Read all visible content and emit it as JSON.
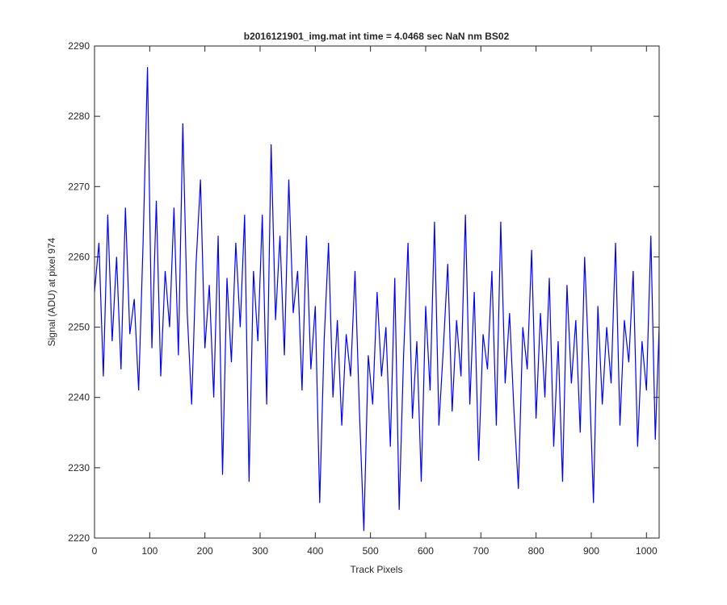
{
  "chart_data": {
    "type": "line",
    "title": "b2016121901_img.mat int time = 4.0468 sec  NaN nm BS02",
    "xlabel": "Track Pixels",
    "ylabel": "Signal (ADU) at pixel 974",
    "x": [
      0,
      8,
      16,
      24,
      32,
      40,
      48,
      56,
      64,
      72,
      80,
      88,
      96,
      104,
      112,
      120,
      128,
      136,
      144,
      152,
      160,
      168,
      176,
      184,
      192,
      200,
      208,
      216,
      224,
      232,
      240,
      248,
      256,
      264,
      272,
      280,
      288,
      296,
      304,
      312,
      320,
      328,
      336,
      344,
      352,
      360,
      368,
      376,
      384,
      392,
      400,
      408,
      416,
      424,
      432,
      440,
      448,
      456,
      464,
      472,
      480,
      488,
      496,
      504,
      512,
      520,
      528,
      536,
      544,
      552,
      560,
      568,
      576,
      584,
      592,
      600,
      608,
      616,
      624,
      632,
      640,
      648,
      656,
      664,
      672,
      680,
      688,
      696,
      704,
      712,
      720,
      728,
      736,
      744,
      752,
      760,
      768,
      776,
      784,
      792,
      800,
      808,
      816,
      824,
      832,
      840,
      848,
      856,
      864,
      872,
      880,
      888,
      896,
      904,
      912,
      920,
      928,
      936,
      944,
      952,
      960,
      968,
      976,
      984,
      992,
      1000,
      1008,
      1016,
      1023
    ],
    "values": [
      2255,
      2262,
      2243,
      2266,
      2248,
      2260,
      2244,
      2267,
      2249,
      2254,
      2241,
      2262,
      2287,
      2247,
      2268,
      2243,
      2258,
      2250,
      2267,
      2246,
      2279,
      2252,
      2239,
      2259,
      2271,
      2247,
      2256,
      2240,
      2263,
      2229,
      2257,
      2245,
      2262,
      2250,
      2266,
      2228,
      2258,
      2248,
      2266,
      2239,
      2276,
      2251,
      2263,
      2246,
      2271,
      2252,
      2258,
      2241,
      2263,
      2244,
      2253,
      2225,
      2248,
      2262,
      2240,
      2251,
      2236,
      2249,
      2243,
      2258,
      2238,
      2221,
      2246,
      2239,
      2255,
      2243,
      2250,
      2233,
      2257,
      2224,
      2246,
      2262,
      2237,
      2248,
      2228,
      2253,
      2241,
      2265,
      2236,
      2247,
      2259,
      2238,
      2251,
      2243,
      2266,
      2239,
      2255,
      2231,
      2249,
      2244,
      2258,
      2236,
      2265,
      2242,
      2252,
      2238,
      2227,
      2250,
      2244,
      2261,
      2237,
      2252,
      2240,
      2257,
      2233,
      2248,
      2228,
      2256,
      2242,
      2251,
      2235,
      2260,
      2244,
      2225,
      2253,
      2239,
      2250,
      2242,
      2262,
      2236,
      2251,
      2245,
      2258,
      2233,
      2248,
      2241,
      2263,
      2234,
      2250
    ],
    "color": "#0000ff",
    "xlim": [
      0,
      1023
    ],
    "ylim": [
      2220,
      2290
    ],
    "xticks": [
      0,
      100,
      200,
      300,
      400,
      500,
      600,
      700,
      800,
      900,
      1000
    ],
    "yticks": [
      2220,
      2230,
      2240,
      2250,
      2260,
      2270,
      2280,
      2290
    ]
  }
}
